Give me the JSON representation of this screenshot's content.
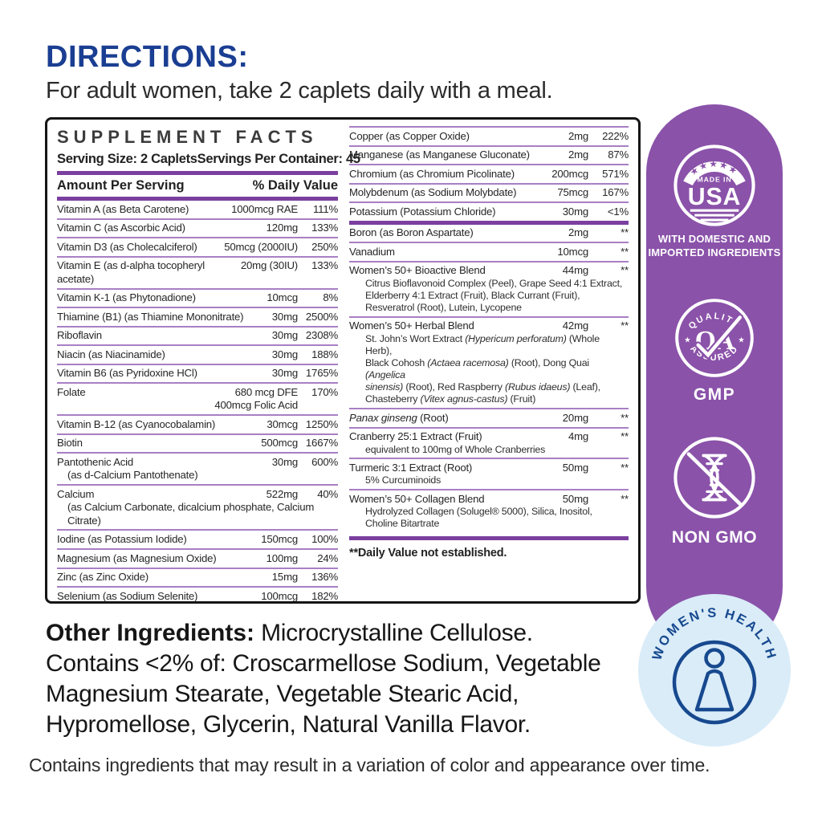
{
  "directions": {
    "heading": "DIRECTIONS:",
    "text": "For adult women, take 2 caplets daily with a meal."
  },
  "facts": {
    "title": "SUPPLEMENT FACTS",
    "serving_size": "Serving Size: 2 Caplets",
    "servings_per_container": "Servings Per Container: 45",
    "amount_header": "Amount Per Serving",
    "dv_header": "% Daily Value",
    "left_rows": [
      {
        "name": "Vitamin A (as Beta Carotene)",
        "amount": "1000mcg RAE",
        "dv": "111%",
        "border": "none"
      },
      {
        "name": "Vitamin C (as Ascorbic Acid)",
        "amount": "120mg",
        "dv": "133%"
      },
      {
        "name": "Vitamin D3 (as Cholecalciferol)",
        "amount": "50mcg (2000IU)",
        "dv": "250%"
      },
      {
        "name": "Vitamin E (as d-alpha tocopheryl acetate)",
        "amount": "20mg (30IU)",
        "dv": "133%"
      },
      {
        "name": "Vitamin K-1 (as Phytonadione)",
        "amount": "10mcg",
        "dv": "8%"
      },
      {
        "name": "Thiamine (B1) (as Thiamine Mononitrate)",
        "amount": "30mg",
        "dv": "2500%"
      },
      {
        "name": "Riboflavin",
        "amount": "30mg",
        "dv": "2308%"
      },
      {
        "name": "Niacin (as Niacinamide)",
        "amount": "30mg",
        "dv": "188%"
      },
      {
        "name": "Vitamin B6 (as Pyridoxine HCl)",
        "amount": "30mg",
        "dv": "1765%"
      },
      {
        "name": "Folate",
        "amount": [
          "680 mcg DFE",
          "400mcg Folic Acid"
        ],
        "dv": "170%"
      },
      {
        "name": "Vitamin B-12 (as Cyanocobalamin)",
        "amount": "30mcg",
        "dv": "1250%"
      },
      {
        "name": "Biotin",
        "amount": "500mcg",
        "dv": "1667%"
      },
      {
        "name": "Pantothenic Acid",
        "name2": "(as d-Calcium Pantothenate)",
        "amount": "30mg",
        "dv": "600%"
      },
      {
        "name": "Calcium",
        "name2": "(as Calcium Carbonate, dicalcium phosphate, Calcium Citrate)",
        "amount": "522mg",
        "dv": "40%"
      },
      {
        "name": "Iodine (as Potassium Iodide)",
        "amount": "150mcg",
        "dv": "100%"
      },
      {
        "name": "Magnesium (as Magnesium Oxide)",
        "amount": "100mg",
        "dv": "24%"
      },
      {
        "name": "Zinc (as Zinc Oxide)",
        "amount": "15mg",
        "dv": "136%"
      },
      {
        "name": "Selenium (as Sodium Selenite)",
        "amount": "100mcg",
        "dv": "182%"
      }
    ],
    "right_rows": [
      {
        "name": "Copper (as Copper Oxide)",
        "amount": "2mg",
        "dv": "222%"
      },
      {
        "name": "Manganese (as Manganese Gluconate)",
        "amount": "2mg",
        "dv": "87%"
      },
      {
        "name": "Chromium (as Chromium Picolinate)",
        "amount": "200mcg",
        "dv": "571%"
      },
      {
        "name": "Molybdenum (as Sodium Molybdate)",
        "amount": "75mcg",
        "dv": "167%"
      },
      {
        "name": "Potassium (Potassium Chloride)",
        "amount": "30mg",
        "dv": "<1%"
      },
      {
        "name": "Boron (as Boron Aspartate)",
        "amount": "2mg",
        "dv": "**",
        "border": "thick"
      },
      {
        "name": "Vanadium",
        "amount": "10mcg",
        "dv": "**"
      },
      {
        "name": "Women’s 50+ Bioactive Blend",
        "amount": "44mg",
        "dv": "**",
        "sub": [
          "Citrus Bioflavonoid Complex (Peel), Grape Seed 4:1 Extract,",
          "Elderberry 4:1 Extract (Fruit), Black Currant (Fruit),",
          "Resveratrol (Root), Lutein, Lycopene"
        ]
      },
      {
        "name": "Women’s 50+ Herbal Blend",
        "amount": "42mg",
        "dv": "**",
        "sub": [
          [
            "St. John’s Wort Extract ",
            {
              "t": "(Hypericum perforatum)",
              "i": true
            },
            " (Whole Herb),"
          ],
          [
            "Black Cohosh ",
            {
              "t": "(Actaea racemosa)",
              "i": true
            },
            " (Root), Dong Quai ",
            {
              "t": "(Angelica",
              "i": true
            }
          ],
          [
            {
              "t": "sinensis)",
              "i": true
            },
            " (Root), Red Raspberry ",
            {
              "t": "(Rubus idaeus)",
              "i": true
            },
            " (Leaf),"
          ],
          [
            "Chasteberry ",
            {
              "t": "(Vitex agnus-castus)",
              "i": true
            },
            " (Fruit)"
          ]
        ]
      },
      {
        "name": [
          {
            "t": "Panax ginseng",
            "i": true
          },
          " (Root)"
        ],
        "amount": "20mg",
        "dv": "**"
      },
      {
        "name": "Cranberry 25:1 Extract (Fruit)",
        "amount": "4mg",
        "dv": "**",
        "sub": [
          "equivalent to 100mg of Whole Cranberries"
        ]
      },
      {
        "name": "Turmeric 3:1 Extract (Root)",
        "amount": "50mg",
        "dv": "**",
        "sub": [
          "5% Curcuminoids"
        ]
      },
      {
        "name": "Women’s 50+ Collagen Blend",
        "amount": "50mg",
        "dv": "**",
        "sub": [
          "Hydrolyzed Collagen (Solugel® 5000), Silica, Inositol,",
          "Choline Bitartrate"
        ]
      }
    ],
    "footnote": "**Daily Value not established."
  },
  "sidebar": {
    "background_color": "#8a52a9",
    "usa_badge": {
      "stars": "★★★★★",
      "made_in": "MADE IN",
      "usa": "USA",
      "caption_line1": "WITH DOMESTIC AND",
      "caption_line2": "IMPORTED INGREDIENTS"
    },
    "qa_badge": {
      "top": "QUALITY",
      "letters": "QA",
      "bottom": "ASSURED",
      "caption": "GMP"
    },
    "non_gmo_badge": {
      "caption": "NON GMO"
    },
    "womens_health_badge": {
      "arc_text": "WOMEN'S HEALTH",
      "circle_color": "#d9ecf8",
      "navy": "#17498f"
    }
  },
  "other_ingredients": {
    "label": "Other Ingredients:",
    "line1_rest": " Microcrystalline Cellulose.",
    "lines": [
      "Contains <2% of: Croscarmellose Sodium, Vegetable",
      "Magnesium Stearate, Vegetable Stearic Acid,",
      "Hypromellose, Glycerin, Natural Vanilla Flavor."
    ]
  },
  "disclaimer": "Contains ingredients that may result in a variation of color and appearance over time.",
  "colors": {
    "heading_blue": "#1a3e92",
    "divider_thin": "#a87fc5",
    "divider_thick": "#7b3fa0",
    "sidebar_purple": "#8a52a9",
    "badge_white": "#ffffff",
    "womens_health_blue": "#d9ecf8",
    "womens_health_navy": "#17498f"
  }
}
